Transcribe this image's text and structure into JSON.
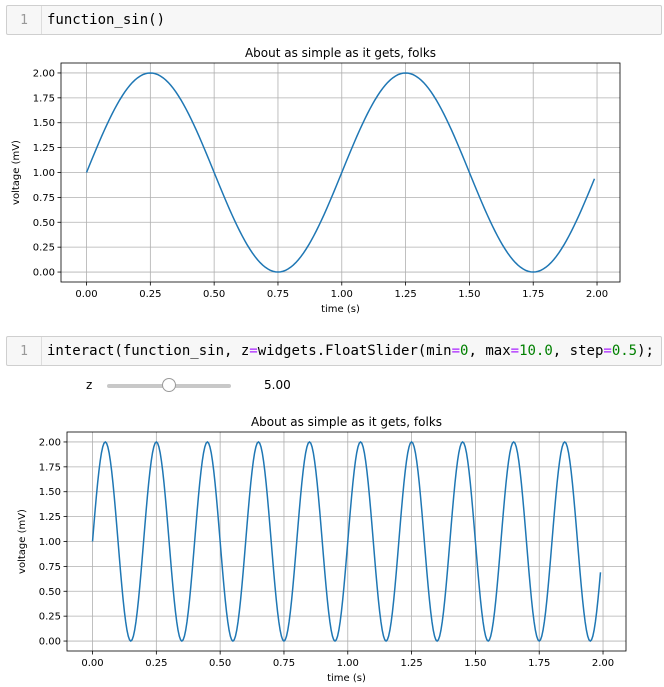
{
  "cells": [
    {
      "line_number": "1"
    },
    {
      "line_number": "1"
    }
  ],
  "cell1_code": {
    "t1": "function_sin()"
  },
  "cell2_code": {
    "t1": "interact(function_sin, z",
    "t2": "=",
    "t3": "widgets.FloatSlider(min",
    "t4": "=",
    "t5": "0",
    "t6": ", max",
    "t7": "=",
    "t8": "10.0",
    "t9": ", step",
    "t10": "=",
    "t11": "0.5",
    "t12": ");"
  },
  "widget": {
    "label": "z",
    "value_text": "5.00",
    "min": 0,
    "max": 10.0,
    "step": 0.5,
    "value": 5.0
  },
  "colors": {
    "line": "#1f77b4",
    "grid": "#b0b0b0",
    "keyword_op": "#aa22ff",
    "number": "#008000"
  },
  "chart_data": [
    {
      "type": "line",
      "title": "About as simple as it gets, folks",
      "xlabel": "time (s)",
      "ylabel": "voltage (mV)",
      "function": "1 + sin(2*pi*z*t)",
      "z": 1,
      "x_range": [
        0.0,
        1.99
      ],
      "x_step": 0.01,
      "xlim": [
        -0.1,
        2.09
      ],
      "ylim": [
        -0.1,
        2.1
      ],
      "xticks": [
        0.0,
        0.25,
        0.5,
        0.75,
        1.0,
        1.25,
        1.5,
        1.75,
        2.0
      ],
      "xtick_labels": [
        "0.00",
        "0.25",
        "0.50",
        "0.75",
        "1.00",
        "1.25",
        "1.50",
        "1.75",
        "2.00"
      ],
      "yticks": [
        0.0,
        0.25,
        0.5,
        0.75,
        1.0,
        1.25,
        1.5,
        1.75,
        2.0
      ],
      "ytick_labels": [
        "0.00",
        "0.25",
        "0.50",
        "0.75",
        "1.00",
        "1.25",
        "1.50",
        "1.75",
        "2.00"
      ],
      "grid": true
    },
    {
      "type": "line",
      "title": "About as simple as it gets, folks",
      "xlabel": "time (s)",
      "ylabel": "voltage (mV)",
      "function": "1 + sin(2*pi*z*t)",
      "z": 5.0,
      "x_range": [
        0.0,
        1.99
      ],
      "x_step": 0.005,
      "xlim": [
        -0.1,
        2.09
      ],
      "ylim": [
        -0.1,
        2.1
      ],
      "xticks": [
        0.0,
        0.25,
        0.5,
        0.75,
        1.0,
        1.25,
        1.5,
        1.75,
        2.0
      ],
      "xtick_labels": [
        "0.00",
        "0.25",
        "0.50",
        "0.75",
        "1.00",
        "1.25",
        "1.50",
        "1.75",
        "2.00"
      ],
      "yticks": [
        0.0,
        0.25,
        0.5,
        0.75,
        1.0,
        1.25,
        1.5,
        1.75,
        2.0
      ],
      "ytick_labels": [
        "0.00",
        "0.25",
        "0.50",
        "0.75",
        "1.00",
        "1.25",
        "1.50",
        "1.75",
        "2.00"
      ],
      "grid": true
    }
  ]
}
